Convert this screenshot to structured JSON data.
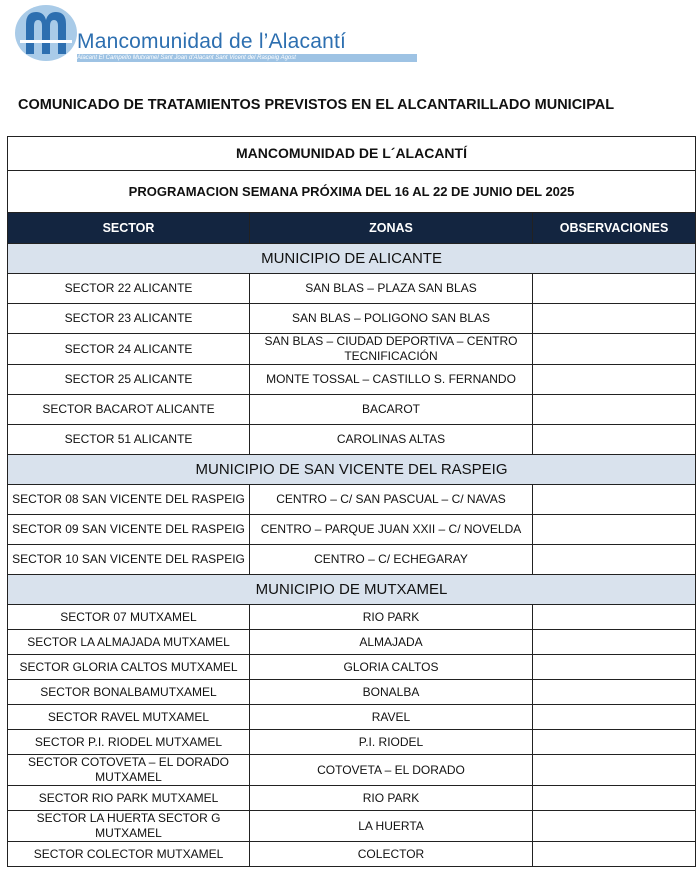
{
  "logo": {
    "name": "Mancomunidad  de  l’Alacantí",
    "tagline": "Alacant  El Campello  Mutxamel  Sant Joan d'Alacant  Sant Vicent del Raspeig  Agost",
    "color": "#2d6fb0"
  },
  "doc_title": "COMUNICADO DE TRATAMIENTOS PREVISTOS EN EL ALCANTARILLADO MUNICIPAL",
  "table": {
    "title": "MANCOMUNIDAD DE L´ALACANTÍ",
    "subtitle": "PROGRAMACION SEMANA PRÓXIMA DEL 16 AL 22 DE JUNIO DEL 2025",
    "headers": [
      "SECTOR",
      "ZONAS",
      "OBSERVACIONES"
    ],
    "header_color": "#132540",
    "group_color": "#d9e2ed",
    "groups": [
      {
        "name": "MUNICIPIO DE ALICANTE",
        "rows": [
          {
            "sector": "SECTOR 22 ALICANTE",
            "zona": "SAN BLAS – PLAZA SAN BLAS",
            "obs": ""
          },
          {
            "sector": "SECTOR 23 ALICANTE",
            "zona": "SAN BLAS – POLIGONO SAN BLAS",
            "obs": ""
          },
          {
            "sector": "SECTOR 24 ALICANTE",
            "zona": "SAN BLAS – CIUDAD DEPORTIVA – CENTRO TECNIFICACIÓN",
            "obs": ""
          },
          {
            "sector": "SECTOR 25 ALICANTE",
            "zona": "MONTE TOSSAL – CASTILLO S. FERNANDO",
            "obs": ""
          },
          {
            "sector": "SECTOR BACAROT ALICANTE",
            "zona": "BACAROT",
            "obs": ""
          },
          {
            "sector": "SECTOR 51 ALICANTE",
            "zona": "CAROLINAS ALTAS",
            "obs": ""
          }
        ]
      },
      {
        "name": "MUNICIPIO DE SAN VICENTE DEL RASPEIG",
        "rows": [
          {
            "sector": "SECTOR 08 SAN VICENTE DEL RASPEIG",
            "zona": "CENTRO – C/ SAN PASCUAL – C/ NAVAS",
            "obs": ""
          },
          {
            "sector": "SECTOR 09 SAN VICENTE DEL RASPEIG",
            "zona": "CENTRO – PARQUE JUAN XXII – C/ NOVELDA",
            "obs": ""
          },
          {
            "sector": "SECTOR 10 SAN VICENTE DEL RASPEIG",
            "zona": "CENTRO – C/ ECHEGARAY",
            "obs": ""
          }
        ]
      },
      {
        "name": "MUNICIPIO DE MUTXAMEL",
        "rows": [
          {
            "sector": "SECTOR 07 MUTXAMEL",
            "zona": "RIO PARK",
            "obs": ""
          },
          {
            "sector": "SECTOR LA ALMAJADA MUTXAMEL",
            "zona": "ALMAJADA",
            "obs": ""
          },
          {
            "sector": "SECTOR GLORIA CALTOS MUTXAMEL",
            "zona": "GLORIA CALTOS",
            "obs": ""
          },
          {
            "sector": "SECTOR BONALBAMUTXAMEL",
            "zona": "BONALBA",
            "obs": ""
          },
          {
            "sector": "SECTOR RAVEL MUTXAMEL",
            "zona": "RAVEL",
            "obs": ""
          },
          {
            "sector": "SECTOR P.I. RIODEL MUTXAMEL",
            "zona": "P.I. RIODEL",
            "obs": ""
          },
          {
            "sector": "SECTOR COTOVETA – EL DORADO MUTXAMEL",
            "zona": "COTOVETA – EL DORADO",
            "obs": ""
          },
          {
            "sector": "SECTOR RIO PARK MUTXAMEL",
            "zona": "RIO PARK",
            "obs": ""
          },
          {
            "sector": "SECTOR LA HUERTA SECTOR G MUTXAMEL",
            "zona": "LA HUERTA",
            "obs": ""
          },
          {
            "sector": "SECTOR COLECTOR MUTXAMEL",
            "zona": "COLECTOR",
            "obs": ""
          }
        ]
      }
    ]
  }
}
